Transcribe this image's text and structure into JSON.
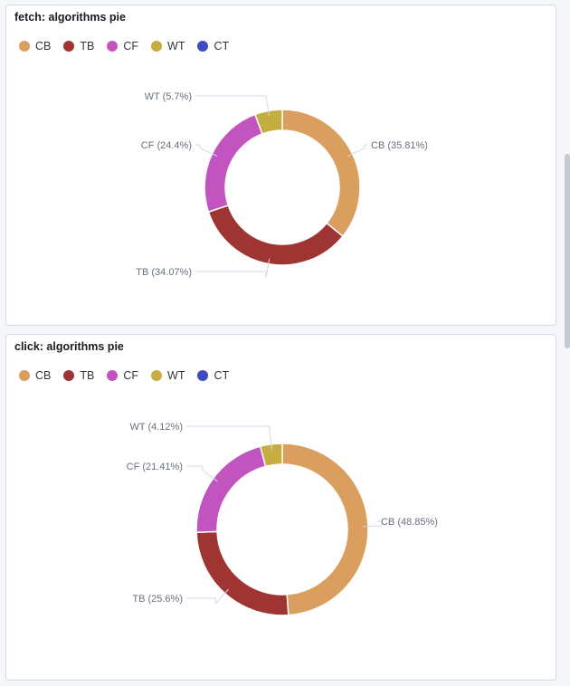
{
  "panels": [
    {
      "title": "fetch: algorithms pie",
      "legend": [
        "CB",
        "TB",
        "CF",
        "WT",
        "CT"
      ],
      "slice_labels": [
        "CB (35.81%)",
        "TB (34.07%)",
        "CF (24.4%)",
        "WT (5.7%)"
      ]
    },
    {
      "title": "click: algorithms pie",
      "legend": [
        "CB",
        "TB",
        "CF",
        "WT",
        "CT"
      ],
      "slice_labels": [
        "CB (48.85%)",
        "TB (25.6%)",
        "CF (21.41%)",
        "WT (4.12%)"
      ]
    }
  ],
  "colors": {
    "CB": "#da9f5e",
    "TB": "#9e3533",
    "CF": "#c254bf",
    "WT": "#c5ad3f",
    "CT": "#3f4cc0"
  },
  "chart_data": [
    {
      "type": "pie",
      "title": "fetch: algorithms pie",
      "donut": true,
      "legend_position": "top-left",
      "labels": [
        "CB",
        "TB",
        "CF",
        "WT"
      ],
      "values": [
        35.81,
        34.07,
        24.4,
        5.7
      ],
      "legend_entries": [
        "CB",
        "TB",
        "CF",
        "WT",
        "CT"
      ]
    },
    {
      "type": "pie",
      "title": "click: algorithms pie",
      "donut": true,
      "legend_position": "top-left",
      "labels": [
        "CB",
        "TB",
        "CF",
        "WT"
      ],
      "values": [
        48.85,
        25.6,
        21.41,
        4.12
      ],
      "legend_entries": [
        "CB",
        "TB",
        "CF",
        "WT",
        "CT"
      ]
    }
  ]
}
